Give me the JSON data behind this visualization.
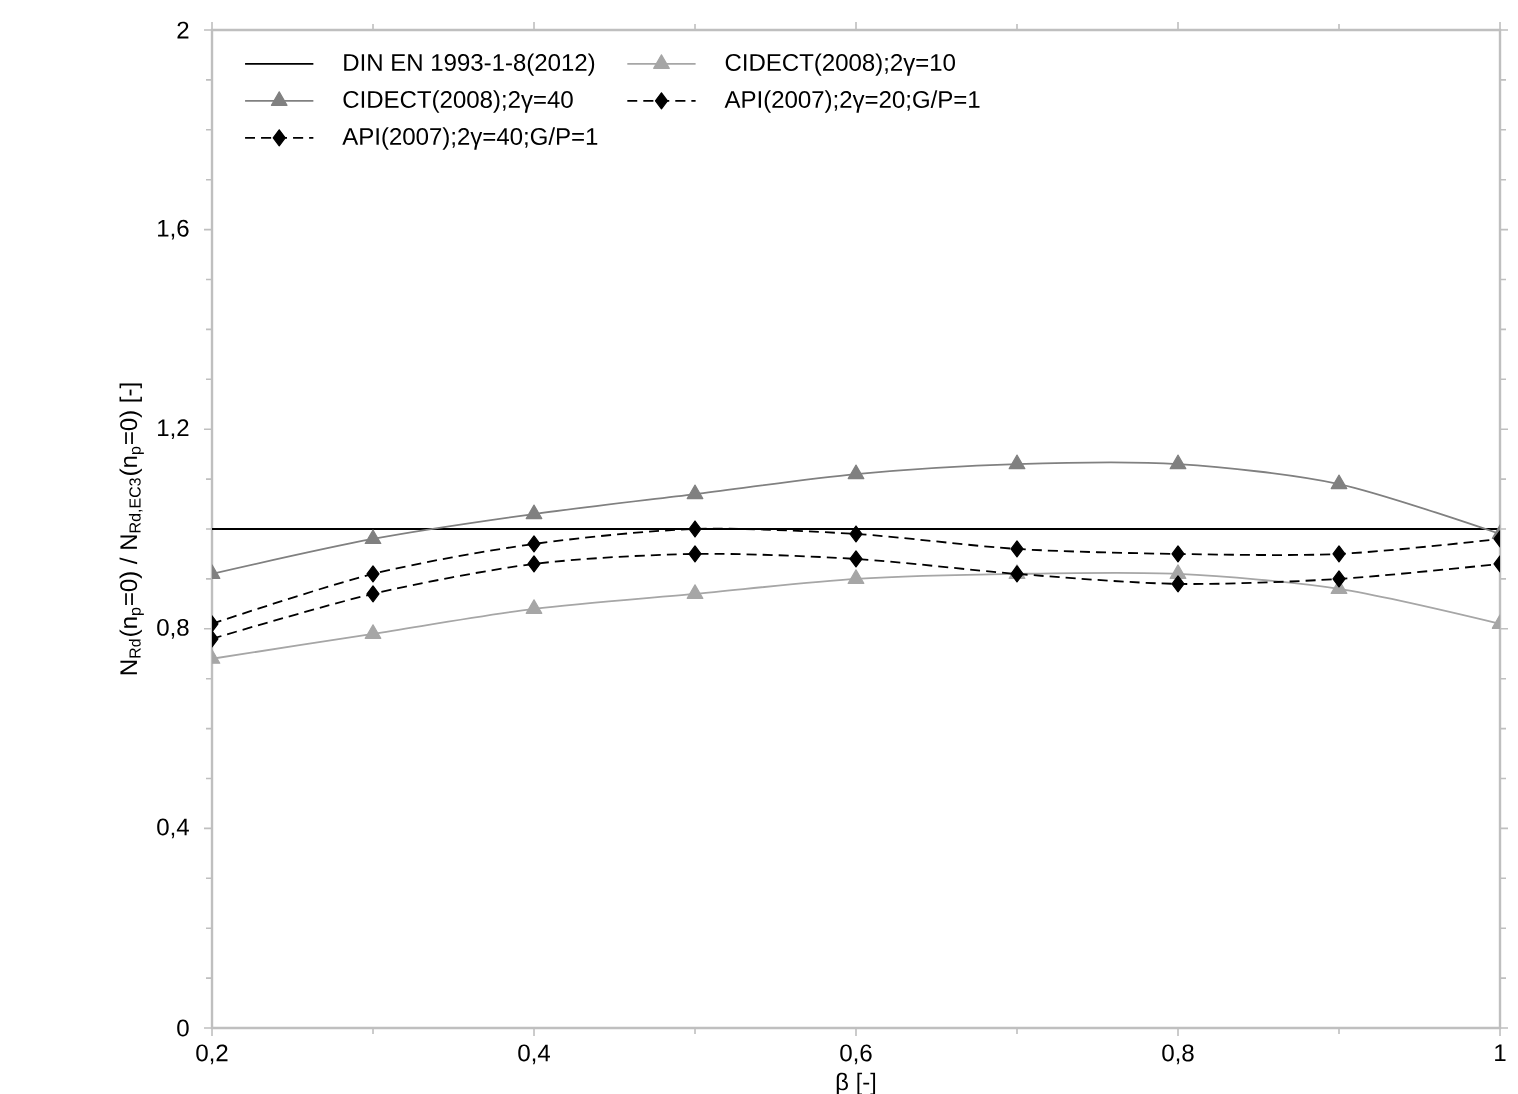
{
  "chart_data": {
    "type": "line",
    "xlabel": "β [-]",
    "ylabel": "N$_{Rd}$(n$_{p}$=0) / N$_{Rd,EC3}$(n$_{p}$=0) [-]",
    "x": [
      0.2,
      0.3,
      0.4,
      0.5,
      0.6,
      0.7,
      0.8,
      0.9,
      1.0
    ],
    "series": [
      {
        "name": "DIN EN 1993-1-8(2012)",
        "color": "#000000",
        "line_style": "solid",
        "values": [
          1.0,
          1.0,
          1.0,
          1.0,
          1.0,
          1.0,
          1.0,
          1.0,
          1.0
        ]
      },
      {
        "name": "CIDECT(2008);2γ=10",
        "color": "#a6a6a6",
        "marker": "triangle",
        "line_style": "solid",
        "values": [
          0.74,
          0.79,
          0.84,
          0.87,
          0.9,
          0.91,
          0.91,
          0.88,
          0.81
        ]
      },
      {
        "name": "CIDECT(2008);2γ=40",
        "color": "#808080",
        "marker": "triangle",
        "line_style": "solid",
        "values": [
          0.91,
          0.98,
          1.03,
          1.07,
          1.11,
          1.13,
          1.13,
          1.09,
          0.99
        ]
      },
      {
        "name": "API(2007);2γ=20;G/P=1",
        "color": "#000000",
        "marker": "diamond",
        "line_style": "dashed",
        "values": [
          0.78,
          0.87,
          0.93,
          0.95,
          0.94,
          0.91,
          0.89,
          0.9,
          0.93
        ]
      },
      {
        "name": "API(2007);2γ=40;G/P=1",
        "color": "#000000",
        "marker": "diamond",
        "line_style": "dashed",
        "values": [
          0.81,
          0.91,
          0.97,
          1.0,
          0.99,
          0.96,
          0.95,
          0.95,
          0.98
        ]
      }
    ],
    "xlim": [
      0.2,
      1.0
    ],
    "xticks": [
      {
        "value": 0.2,
        "label": "0,2"
      },
      {
        "value": 0.4,
        "label": "0,4"
      },
      {
        "value": 0.6,
        "label": "0,6"
      },
      {
        "value": 0.8,
        "label": "0,8"
      },
      1
    ],
    "ylim": [
      0,
      2
    ],
    "yticks": [
      0,
      {
        "value": 0.4,
        "label": "0,4"
      },
      {
        "value": 0.8,
        "label": "0,8"
      },
      {
        "value": 1.2,
        "label": "1,2"
      },
      {
        "value": 1.6,
        "label": "1,6"
      },
      2
    ],
    "grid": false,
    "legend": "top"
  }
}
